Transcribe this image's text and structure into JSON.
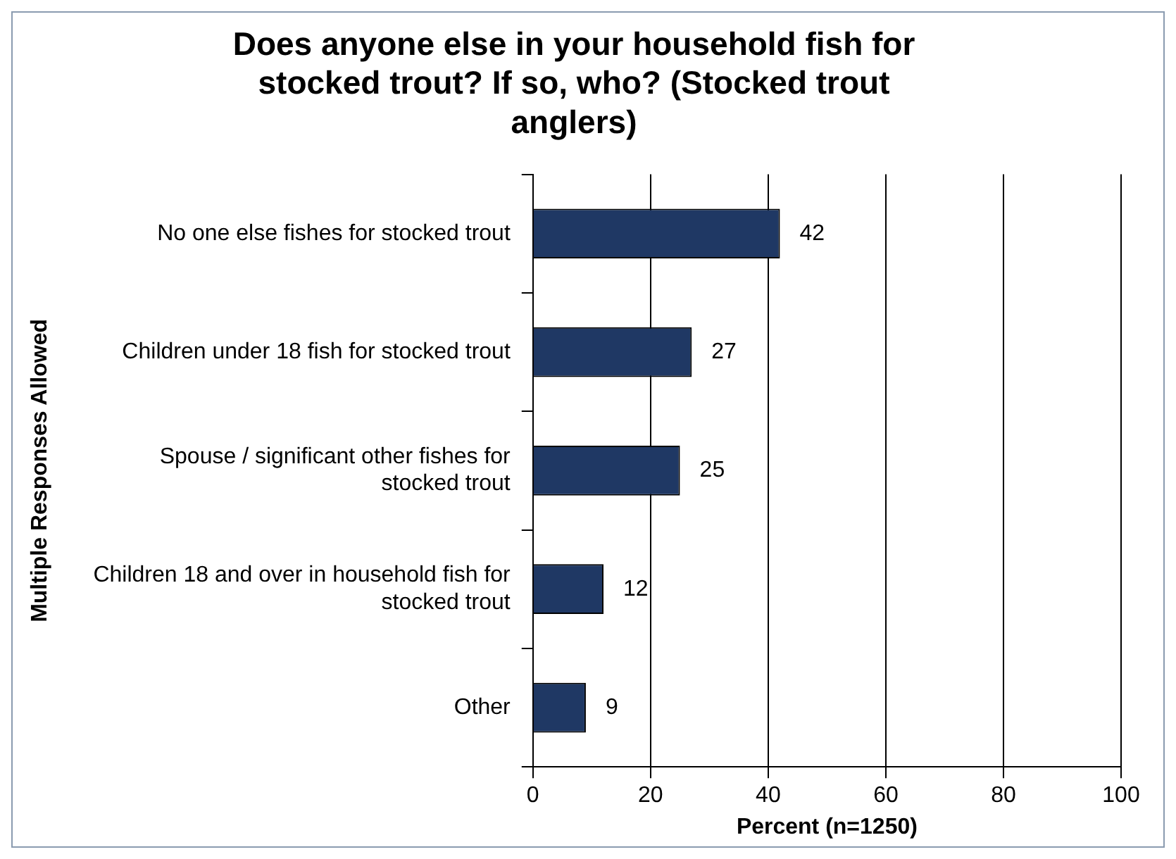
{
  "chart_data": {
    "type": "bar",
    "orientation": "horizontal",
    "title": "Does anyone else in your household fish for stocked trout? If so, who? (Stocked trout anglers)",
    "xlabel": "Percent (n=1250)",
    "ylabel": "Multiple Responses Allowed",
    "categories": [
      "No one else fishes for stocked trout",
      "Children under 18 fish for stocked trout",
      "Spouse / significant other fishes for stocked trout",
      "Children 18 and over in household fish for stocked trout",
      "Other"
    ],
    "values": [
      42,
      27,
      25,
      12,
      9
    ],
    "color": "#1f3864",
    "xlim": [
      0,
      100
    ],
    "xticks": [
      0,
      20,
      40,
      60,
      80,
      100
    ],
    "grid": "x",
    "data_labels": true,
    "legend": false
  }
}
